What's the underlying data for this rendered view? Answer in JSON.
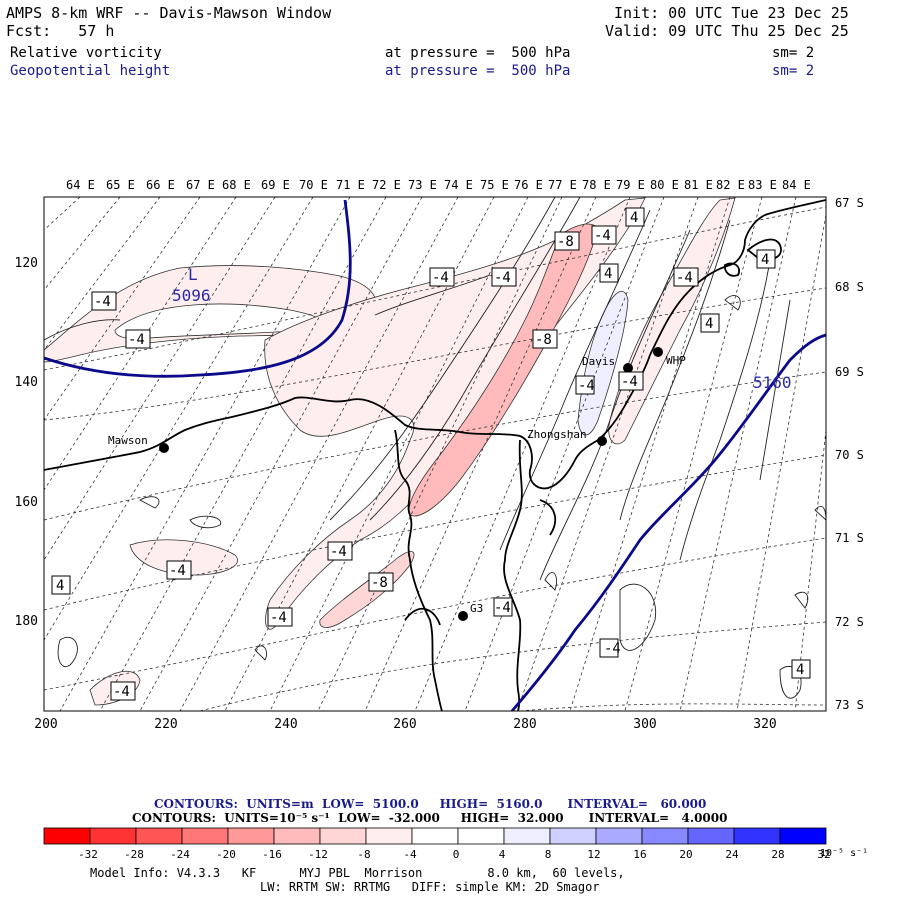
{
  "header": {
    "title": "AMPS 8-km WRF -- Davis-Mawson Window",
    "init": "Init: 00 UTC Tue 23 Dec 25",
    "fcst": "Fcst:   57 h",
    "valid": "Valid: 09 UTC Thu 25 Dec 25",
    "field1": {
      "name": "Relative vorticity",
      "pressure": "at pressure =  500 hPa",
      "sm": "sm= 2"
    },
    "field2": {
      "name": "Geopotential height",
      "pressure": "at pressure =  500 hPa",
      "sm": "sm= 2"
    }
  },
  "map": {
    "top_labels": [
      "64 E",
      "65 E",
      "66 E",
      "67 E",
      "68 E",
      "69 E",
      "70 E",
      "71 E",
      "72 E",
      "73 E",
      "74 E",
      "75 E",
      "76 E",
      "77 E",
      "78 E",
      "79 E",
      "80 E",
      "81 E",
      "82 E",
      "83 E",
      "84 E"
    ],
    "right_labels": [
      "67 S",
      "68 S",
      "69 S",
      "70 S",
      "71 S",
      "72 S",
      "73 S"
    ],
    "y_labels": [
      "120",
      "140",
      "160",
      "180"
    ],
    "x_labels": [
      "200",
      "220",
      "240",
      "260",
      "280",
      "300",
      "320"
    ],
    "stations": [
      {
        "name": "Mawson"
      },
      {
        "name": "Davis"
      },
      {
        "name": "WHP"
      },
      {
        "name": "Zhongshan"
      },
      {
        "name": "G3"
      }
    ],
    "low_label": "L",
    "low_value": "5096",
    "height_label": "5160",
    "boxes": [
      "-4",
      "-4",
      "-4",
      "-4",
      "-8",
      "-4",
      "4",
      "-4",
      "4",
      "-4",
      "-8",
      "-4",
      "-4",
      "-8",
      "4",
      "-4",
      "-4",
      "-4",
      "-4",
      "4",
      "4",
      "4",
      "-4"
    ]
  },
  "footer": {
    "contours1": "CONTOURS:  UNITS=m  LOW=  5100.0     HIGH=  5160.0      INTERVAL=   60.000",
    "contours2": "CONTOURS:  UNITS=10⁻⁵ s⁻¹  LOW=  -32.000     HIGH=  32.000      INTERVAL=   4.0000",
    "colorbar_ticks": [
      "-32",
      "-28",
      "-24",
      "-20",
      "-16",
      "-12",
      "-8",
      "-4",
      "0",
      "4",
      "8",
      "12",
      "16",
      "20",
      "24",
      "28",
      "32"
    ],
    "colorbar_unit": "10⁻⁵ s⁻¹",
    "colorbar_colors": [
      "#ff0000",
      "#ff3333",
      "#ff5555",
      "#ff7777",
      "#ff9999",
      "#ffbbbb",
      "#ffd6d6",
      "#ffeeee",
      "#ffffff",
      "#ffffff",
      "#eeeeff",
      "#d0d0ff",
      "#aaaaff",
      "#8888ff",
      "#6666ff",
      "#3333ff",
      "#0000ff"
    ],
    "model1": "Model Info: V4.3.3   KF      MYJ PBL  Morrison         8.0 km,  60 levels,",
    "model2": "LW: RRTM SW: RRTMG   DIFF: simple KM: 2D Smagor"
  }
}
